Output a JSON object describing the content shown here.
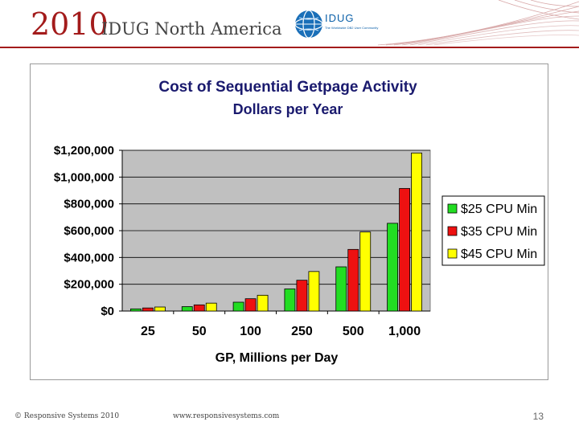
{
  "header": {
    "year": "2010",
    "conference": "IDUG North America",
    "logo_text": "IDUG",
    "logo_tagline": "The Worldwide DB2 User Community",
    "accent_color": "#a31b1b",
    "logo_color": "#0a5fa8"
  },
  "chart_data": {
    "type": "bar",
    "title": "Cost of Sequential Getpage Activity",
    "subtitle": "Dollars per Year",
    "xlabel": "GP, Millions per Day",
    "ylabel": "",
    "categories": [
      "25",
      "50",
      "100",
      "250",
      "500",
      "1,000"
    ],
    "series": [
      {
        "name": "$25 CPU Min",
        "color": "#22dd22",
        "values": [
          16000,
          33000,
          66000,
          165000,
          330000,
          655000
        ]
      },
      {
        "name": "$35 CPU Min",
        "color": "#ee1111",
        "values": [
          23000,
          46000,
          92000,
          230000,
          460000,
          915000
        ]
      },
      {
        "name": "$45 CPU Min",
        "color": "#ffff00",
        "values": [
          30000,
          59000,
          118000,
          295000,
          590000,
          1180000
        ]
      }
    ],
    "ylim": [
      0,
      1200000
    ],
    "yticks": [
      0,
      200000,
      400000,
      600000,
      800000,
      1000000,
      1200000
    ],
    "yticklabels": [
      "$0",
      "$200,000",
      "$400,000",
      "$600,000",
      "$800,000",
      "$1,000,000",
      "$1,200,000"
    ],
    "grid": true,
    "legend": "right",
    "plot_background": "#c0c0c0"
  },
  "footer": {
    "copyright": "© Responsive Systems 2010",
    "website": "www.responsivesystems.com",
    "page_number": "13"
  }
}
